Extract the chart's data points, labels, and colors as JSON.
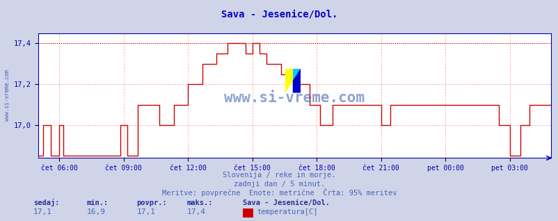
{
  "title": "Sava - Jesenice/Dol.",
  "title_color": "#0000cc",
  "bg_color": "#d0d4e8",
  "plot_bg_color": "#ffffff",
  "line_color": "#cc0000",
  "axis_color": "#0000aa",
  "grid_color": "#ffb0b0",
  "text_color": "#4466bb",
  "xtick_labels": [
    "čet 06:00",
    "čet 09:00",
    "čet 12:00",
    "čet 15:00",
    "čet 18:00",
    "čet 21:00",
    "pet 00:00",
    "pet 03:00"
  ],
  "ytick_labels": [
    "17,0",
    "17,2",
    "17,4"
  ],
  "footer_line1": "Slovenija / reke in morje.",
  "footer_line2": "zadnji dan / 5 minut.",
  "footer_line3": "Meritve: povprečne  Enote: metrične  Črta: 95% meritev",
  "stat_labels": [
    "sedaj:",
    "min.:",
    "povpr.:",
    "maks.:"
  ],
  "stat_values": [
    "17,1",
    "16,9",
    "17,1",
    "17,4"
  ],
  "legend_title": "Sava - Jesenice/Dol.",
  "legend_item": "temperatura[C]",
  "legend_color": "#cc0000",
  "watermark": "www.si-vreme.com",
  "max_val": 17.4,
  "ylim_low": 16.84,
  "ylim_high": 17.45
}
